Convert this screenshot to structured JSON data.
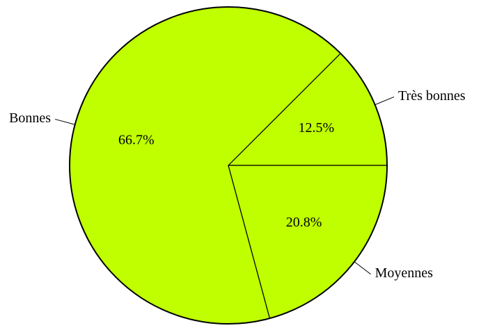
{
  "chart_data": {
    "type": "pie",
    "categories": [
      "Très bonnes",
      "Bonnes",
      "Moyennes"
    ],
    "values": [
      12.5,
      66.7,
      20.8
    ],
    "value_labels": [
      "12.5%",
      "66.7%",
      "20.8%"
    ],
    "color": "#bfff00"
  }
}
